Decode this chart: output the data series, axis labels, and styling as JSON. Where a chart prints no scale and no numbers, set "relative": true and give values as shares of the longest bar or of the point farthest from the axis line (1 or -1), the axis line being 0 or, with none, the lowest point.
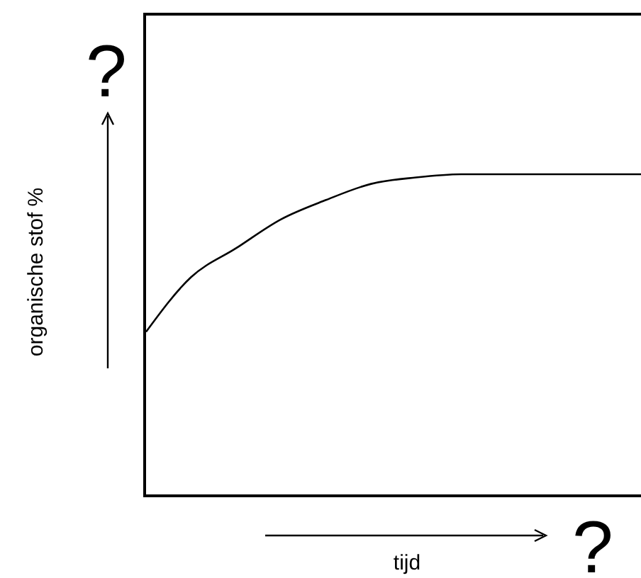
{
  "chart_data": {
    "type": "line",
    "xlabel": "tijd",
    "ylabel": "organische stof %",
    "annotations": [
      "?",
      "?"
    ],
    "relative": true,
    "categories": [
      null,
      null,
      null,
      null,
      null,
      null,
      null,
      null,
      null,
      null,
      null,
      null
    ],
    "series": [
      {
        "color": "#000000",
        "values": [
          0.51,
          0.68,
          0.77,
          0.86,
          0.92,
          0.97,
          0.99,
          1,
          1,
          1,
          1,
          1
        ]
      }
    ]
  }
}
